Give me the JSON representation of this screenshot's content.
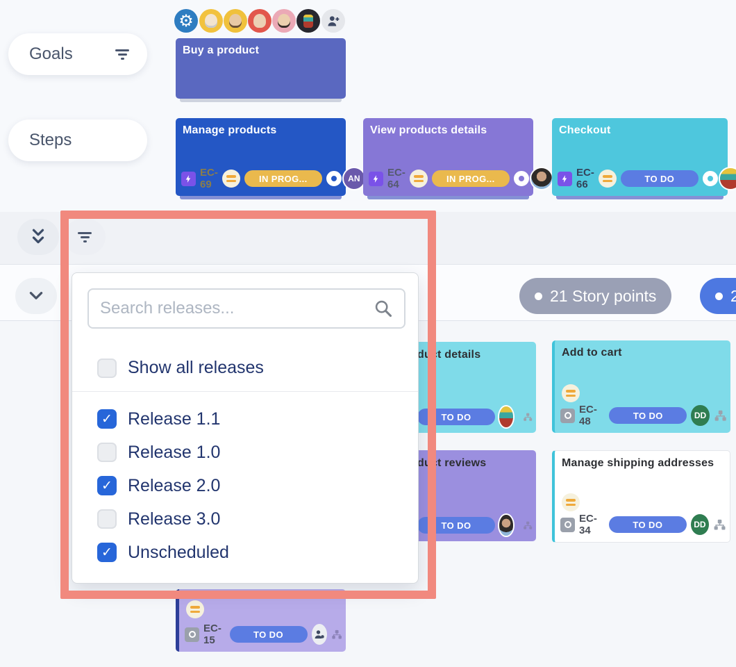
{
  "colors": {
    "highlight_box": "#F1897E",
    "checkbox_checked": "#2766D9",
    "status_todo": "#5B7CE2",
    "status_inprogress": "#EAB94D",
    "badge_gray": "#9AA0B5",
    "badge_blue": "#4D78E1",
    "epic_goal": "#5A68C0",
    "epic_blue": "#2457C5",
    "epic_purple": "#8677D6",
    "epic_cyan": "#4EC7DD"
  },
  "header": {
    "avatars": [
      {
        "name": "avatar-grandma"
      },
      {
        "name": "avatar-young-man"
      },
      {
        "name": "avatar-bald-man"
      },
      {
        "name": "avatar-headset-woman"
      },
      {
        "name": "avatar-robot"
      }
    ]
  },
  "sidebar": {
    "goals_label": "Goals",
    "steps_label": "Steps"
  },
  "goal_card": {
    "title": "Buy a product"
  },
  "step_cards": [
    {
      "title": "Manage products",
      "key": "EC-69",
      "status": "IN PROG...",
      "assignee_initials": "AN"
    },
    {
      "title": "View products details",
      "key": "EC-64",
      "status": "IN PROG..."
    },
    {
      "title": "Checkout",
      "key": "EC-66",
      "status": "TO DO"
    }
  ],
  "badges": {
    "story_points_label": "21 Story points",
    "overflow_label": "2"
  },
  "release_filter": {
    "search_placeholder": "Search releases...",
    "show_all": {
      "label": "Show all releases",
      "checked": false
    },
    "releases": [
      {
        "label": "Release 1.1",
        "checked": true
      },
      {
        "label": "Release 1.0",
        "checked": false
      },
      {
        "label": "Release 2.0",
        "checked": true
      },
      {
        "label": "Release 3.0",
        "checked": false
      },
      {
        "label": "Unscheduled",
        "checked": true
      }
    ]
  },
  "story_cards": {
    "product_details": {
      "title_visible": "duct details",
      "status": "TO DO"
    },
    "add_to_cart": {
      "title": "Add to cart",
      "key": "EC-48",
      "status": "TO DO",
      "assignee_initials": "DD"
    },
    "product_reviews": {
      "title_visible": "duct reviews",
      "status": "TO DO"
    },
    "shipping": {
      "title": "Manage shipping addresses",
      "key": "EC-34",
      "status": "TO DO",
      "assignee_initials": "DD"
    },
    "bottom_partial": {
      "key": "EC-15",
      "status": "TO DO"
    }
  }
}
